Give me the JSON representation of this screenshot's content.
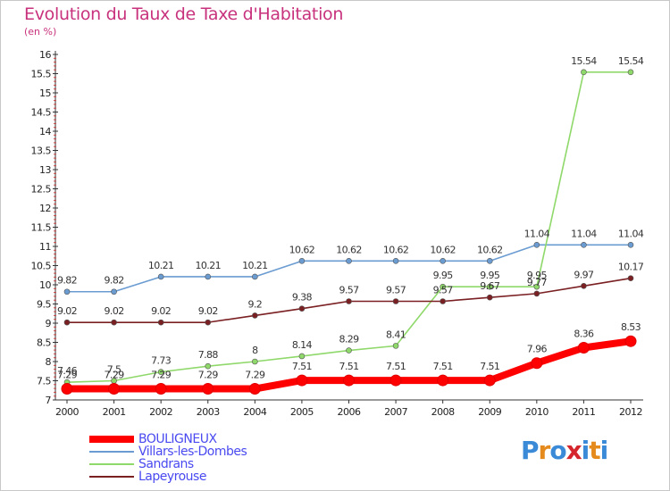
{
  "title": "Evolution du Taux de Taxe d'Habitation",
  "subtitle": "(en %)",
  "logo": {
    "text": "Proxiti",
    "colors": [
      "#3a8ad8",
      "#e58a1c",
      "#3a8ad8",
      "#d4262c",
      "#3a8ad8",
      "#e58a1c",
      "#3a8ad8"
    ]
  },
  "chart_data": {
    "type": "line",
    "x": [
      "2000",
      "2001",
      "2002",
      "2003",
      "2004",
      "2005",
      "2006",
      "2007",
      "2008",
      "2009",
      "2010",
      "2011",
      "2012"
    ],
    "ylim": [
      7,
      16
    ],
    "yticks": [
      "7",
      "7.5",
      "8",
      "8.5",
      "9",
      "9.5",
      "10",
      "10.5",
      "11",
      "11.5",
      "12",
      "12.5",
      "13",
      "13.5",
      "14",
      "14.5",
      "15",
      "15.5",
      "16"
    ],
    "legend_position": "bottom-left",
    "grid": false,
    "series": [
      {
        "name": "BOULIGNEUX",
        "color": "#ff0000",
        "emphasis": true,
        "values": [
          7.29,
          7.29,
          7.29,
          7.29,
          7.29,
          7.51,
          7.51,
          7.51,
          7.51,
          7.51,
          7.96,
          8.36,
          8.53
        ],
        "labels": [
          "7.29",
          "7.29",
          "7.29",
          "7.29",
          "7.29",
          "7.51",
          "7.51",
          "7.51",
          "7.51",
          "7.51",
          "7.96",
          "8.36",
          "8.53"
        ]
      },
      {
        "name": "Villars-les-Dombes",
        "color": "#6a9bd1",
        "emphasis": false,
        "values": [
          9.82,
          9.82,
          10.21,
          10.21,
          10.21,
          10.62,
          10.62,
          10.62,
          10.62,
          10.62,
          11.04,
          11.04,
          11.04
        ],
        "labels": [
          "9.82",
          "9.82",
          "10.21",
          "10.21",
          "10.21",
          "10.62",
          "10.62",
          "10.62",
          "10.62",
          "10.62",
          "11.04",
          "11.04",
          "11.04"
        ]
      },
      {
        "name": "Sandrans",
        "color": "#8fd86a",
        "emphasis": false,
        "values": [
          7.46,
          7.5,
          7.73,
          7.88,
          8,
          8.14,
          8.29,
          8.41,
          9.95,
          9.95,
          9.95,
          15.54,
          15.54
        ],
        "labels": [
          "7.46",
          "7.5",
          "7.73",
          "7.88",
          "8",
          "8.14",
          "8.29",
          "8.41",
          "9.95",
          "9.95",
          "9.95",
          "15.54",
          "15.54"
        ]
      },
      {
        "name": "Lapeyrouse",
        "color": "#7a1f22",
        "emphasis": false,
        "values": [
          9.02,
          9.02,
          9.02,
          9.02,
          9.2,
          9.38,
          9.57,
          9.57,
          9.57,
          9.67,
          9.77,
          9.97,
          10.17
        ],
        "labels": [
          "9.02",
          "9.02",
          "9.02",
          "9.02",
          "9.2",
          "9.38",
          "9.57",
          "9.57",
          "9.57",
          "9.67",
          "9.77",
          "9.97",
          "10.17"
        ]
      }
    ]
  }
}
